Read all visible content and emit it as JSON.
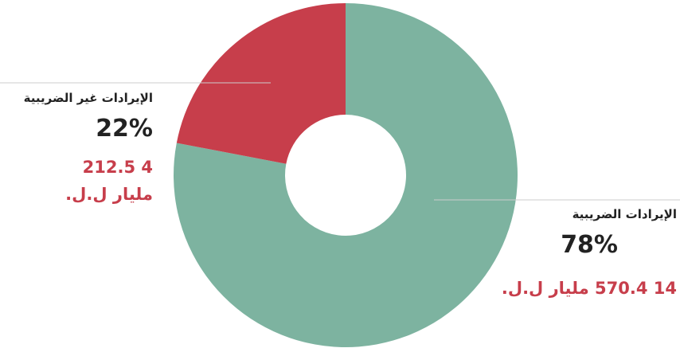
{
  "colors": {
    "tax": "#7db3a0",
    "non_tax": "#c73e4b",
    "leader_line": "#cccccc",
    "label_text": "#222222"
  },
  "chart_data": {
    "type": "pie",
    "donut": true,
    "series": [
      {
        "name": "الإيرادات الضريبية",
        "value": 78,
        "percent_label": "78%",
        "amount_label": "14 570.4 مليار ل.ل.",
        "color": "#7db3a0"
      },
      {
        "name": "الإيرادات غير الضريبية",
        "value": 22,
        "percent_label": "22%",
        "amount_label": "4 212.5 مليار ل.ل.",
        "color": "#c73e4b"
      }
    ],
    "legend": "none"
  }
}
